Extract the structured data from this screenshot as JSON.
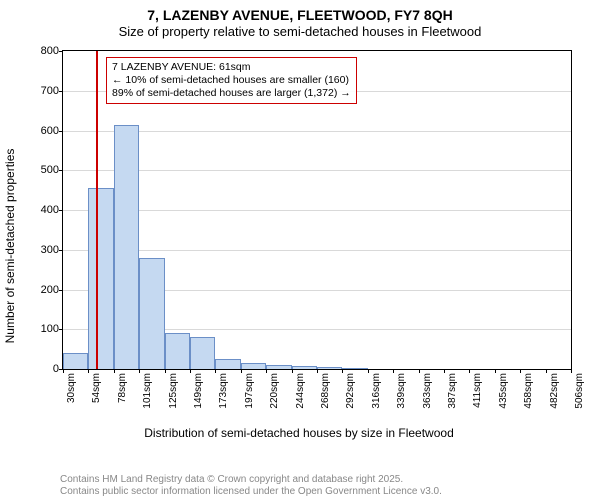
{
  "header": {
    "title": "7, LAZENBY AVENUE, FLEETWOOD, FY7 8QH",
    "subtitle": "Size of property relative to semi-detached houses in Fleetwood"
  },
  "chart": {
    "type": "histogram",
    "ylabel": "Number of semi-detached properties",
    "xlabel": "Distribution of semi-detached houses by size in Fleetwood",
    "ylim": [
      0,
      800
    ],
    "ytick_step": 100,
    "xtick_labels": [
      "30sqm",
      "54sqm",
      "78sqm",
      "101sqm",
      "125sqm",
      "149sqm",
      "173sqm",
      "197sqm",
      "220sqm",
      "244sqm",
      "268sqm",
      "292sqm",
      "316sqm",
      "339sqm",
      "363sqm",
      "387sqm",
      "411sqm",
      "435sqm",
      "458sqm",
      "482sqm",
      "506sqm"
    ],
    "bars": [
      40,
      455,
      615,
      280,
      90,
      80,
      25,
      15,
      10,
      8,
      5,
      3,
      0,
      0,
      0,
      0,
      0,
      0,
      0,
      0
    ],
    "bar_fill": "#c5d9f1",
    "bar_stroke": "#6b8fc7",
    "grid_color": "#d9d9d9",
    "background_color": "#ffffff",
    "axis_color": "#000000",
    "marker": {
      "position_bin": 1.3,
      "color": "#cc0000"
    },
    "annotation": {
      "line1": "7 LAZENBY AVENUE: 61sqm",
      "line2": "← 10% of semi-detached houses are smaller (160)",
      "line3": "89% of semi-detached houses are larger (1,372) →",
      "border_color": "#cc0000"
    }
  },
  "credit": {
    "line1": "Contains HM Land Registry data © Crown copyright and database right 2025.",
    "line2": "Contains public sector information licensed under the Open Government Licence v3.0."
  }
}
